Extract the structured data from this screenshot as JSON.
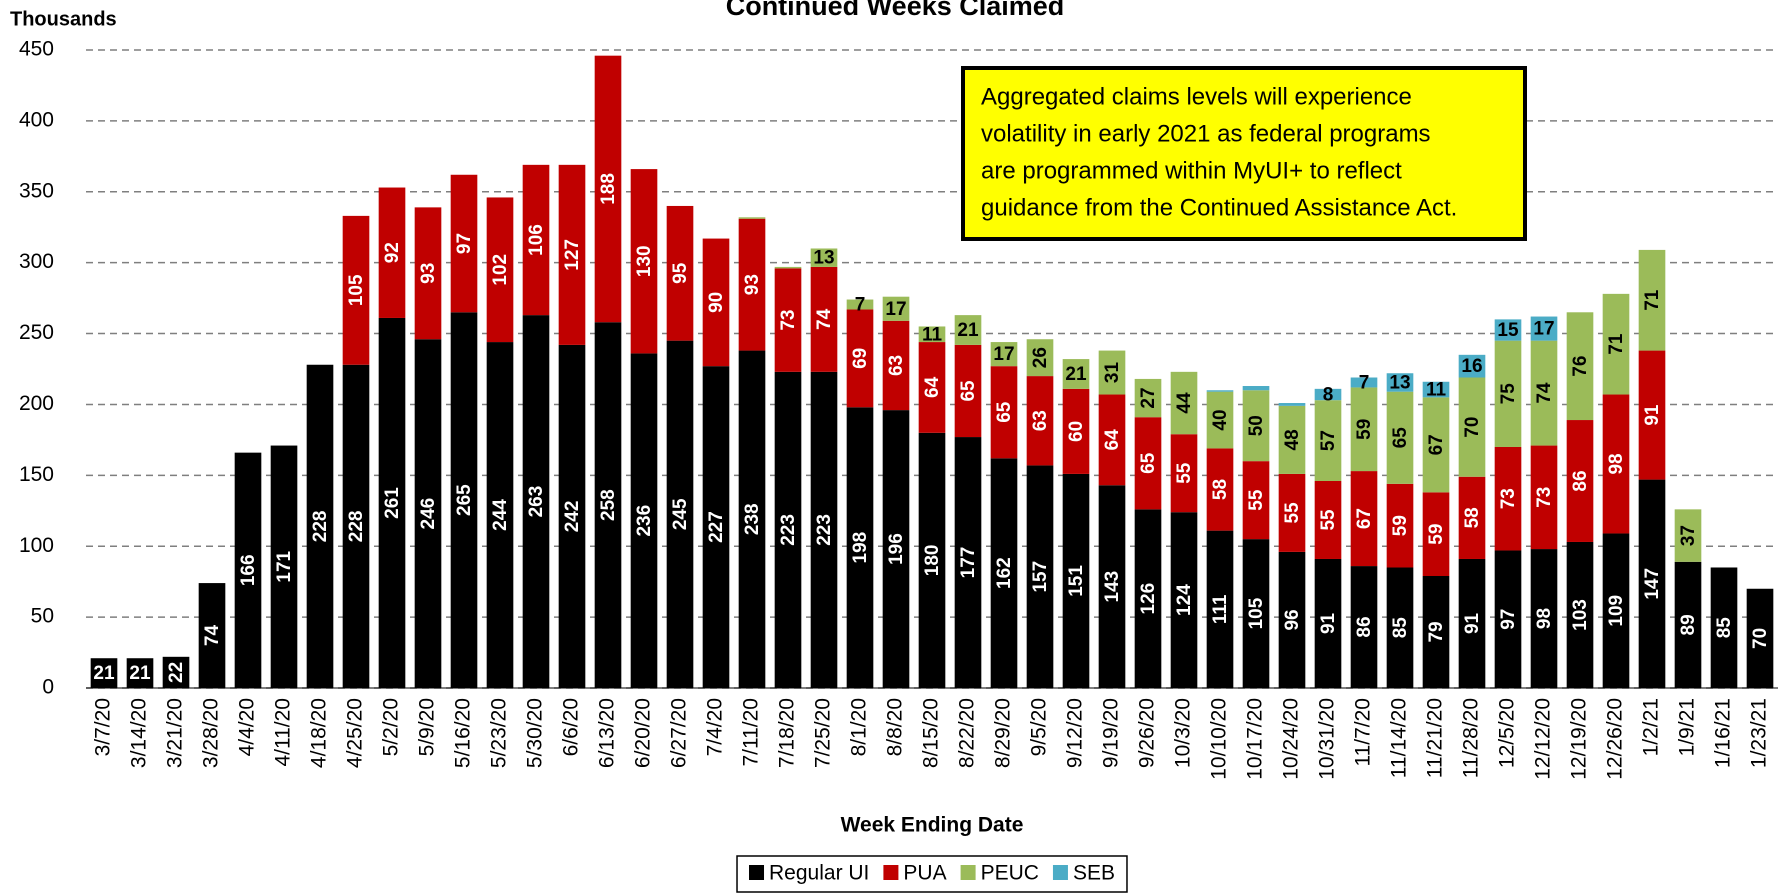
{
  "chart_data": {
    "type": "bar",
    "stacked": true,
    "title": "Continued Weeks Claimed",
    "y_label": "Thousands",
    "x_label": "Week Ending Date",
    "annotation": [
      "Aggregated claims levels will experience",
      "volatility in early 2021 as federal programs",
      "are programmed within MyUI+ to reflect",
      "guidance from the Continued Assistance Act."
    ],
    "categories": [
      "3/7/20",
      "3/14/20",
      "3/21/20",
      "3/28/20",
      "4/4/20",
      "4/11/20",
      "4/18/20",
      "4/25/20",
      "5/2/20",
      "5/9/20",
      "5/16/20",
      "5/23/20",
      "5/30/20",
      "6/6/20",
      "6/13/20",
      "6/20/20",
      "6/27/20",
      "7/4/20",
      "7/11/20",
      "7/18/20",
      "7/25/20",
      "8/1/20",
      "8/8/20",
      "8/15/20",
      "8/22/20",
      "8/29/20",
      "9/5/20",
      "9/12/20",
      "9/19/20",
      "9/26/20",
      "10/3/20",
      "10/10/20",
      "10/17/20",
      "10/24/20",
      "10/31/20",
      "11/7/20",
      "11/14/20",
      "11/21/20",
      "11/28/20",
      "12/5/20",
      "12/12/20",
      "12/19/20",
      "12/26/20",
      "1/2/21",
      "1/9/21",
      "1/16/21",
      "1/23/21"
    ],
    "series": [
      {
        "name": "Regular UI",
        "color": "#000000",
        "values": [
          21,
          21,
          22,
          74,
          166,
          171,
          228,
          228,
          261,
          246,
          265,
          244,
          263,
          242,
          258,
          236,
          245,
          227,
          238,
          223,
          223,
          198,
          196,
          180,
          177,
          162,
          157,
          151,
          143,
          126,
          124,
          111,
          105,
          96,
          91,
          86,
          85,
          79,
          91,
          97,
          98,
          103,
          109,
          147,
          89,
          85,
          70
        ]
      },
      {
        "name": "PUA",
        "color": "#c00000",
        "values": [
          null,
          null,
          null,
          null,
          null,
          null,
          null,
          105,
          92,
          93,
          97,
          102,
          106,
          127,
          188,
          130,
          95,
          90,
          93,
          73,
          74,
          69,
          63,
          64,
          65,
          65,
          63,
          60,
          64,
          65,
          55,
          58,
          55,
          55,
          55,
          67,
          59,
          59,
          58,
          73,
          73,
          86,
          98,
          91,
          null,
          null,
          null
        ]
      },
      {
        "name": "PEUC",
        "color": "#9bbb59",
        "values": [
          null,
          null,
          null,
          null,
          null,
          null,
          null,
          null,
          null,
          null,
          null,
          null,
          null,
          null,
          null,
          null,
          null,
          null,
          1,
          1,
          13,
          7,
          17,
          11,
          21,
          17,
          26,
          21,
          31,
          27,
          44,
          40,
          50,
          48,
          57,
          59,
          65,
          67,
          70,
          75,
          74,
          76,
          71,
          71,
          37,
          null,
          null
        ]
      },
      {
        "name": "SEB",
        "color": "#4bacc6",
        "values": [
          null,
          null,
          null,
          null,
          null,
          null,
          null,
          null,
          null,
          null,
          null,
          null,
          null,
          null,
          null,
          null,
          null,
          null,
          null,
          null,
          null,
          null,
          null,
          null,
          null,
          null,
          null,
          null,
          null,
          null,
          null,
          1,
          3,
          2,
          8,
          7,
          13,
          11,
          16,
          15,
          17,
          null,
          null,
          null,
          null,
          null,
          null
        ]
      }
    ],
    "ylim": [
      0,
      450
    ],
    "yticks": [
      0,
      50,
      100,
      150,
      200,
      250,
      300,
      350,
      400,
      450
    ],
    "grid": true,
    "legend": "bottom"
  }
}
